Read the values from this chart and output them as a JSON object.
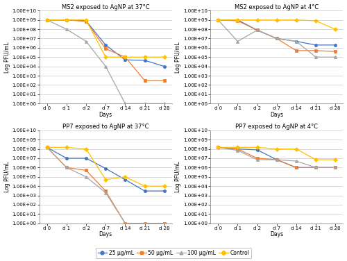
{
  "titles": [
    "MS2 exposed to AgNP at 37°C",
    "MS2 exposed to AgNP at 4°C",
    "PP7 exposed to AgNP at 37°C",
    "PP7 exposed to AgNP at 4°C"
  ],
  "x_labels": [
    "d 0",
    "d 1",
    "d 2",
    "d 7",
    "d 14",
    "d 21",
    "d 28"
  ],
  "x_vals": [
    0,
    1,
    2,
    3,
    4,
    5,
    6
  ],
  "ylabel": "Log PFU/mL",
  "xlabel": "Days",
  "colors": {
    "25": "#4472c4",
    "50": "#ed7d31",
    "100": "#a5a5a5",
    "control": "#ffc000"
  },
  "markers": {
    "25": "o",
    "50": "s",
    "100": "^",
    "control": "D"
  },
  "data": {
    "MS2_37": {
      "25": [
        1000000000.0,
        1000000000.0,
        800000000.0,
        2000000.0,
        50000.0,
        45000.0,
        10000.0
      ],
      "25_err": [
        0,
        0,
        50000000.0,
        300000.0,
        10000.0,
        5000.0,
        2000.0
      ],
      "50": [
        1000000000.0,
        1000000000.0,
        700000000.0,
        800000.0,
        100000.0,
        300.0,
        300.0
      ],
      "50_err": [
        0,
        0,
        50000000.0,
        100000.0,
        20000.0,
        100.0,
        100.0
      ],
      "100": [
        1000000000.0,
        100000000.0,
        5000000.0,
        10000.0,
        1.0,
        1.0,
        1.0
      ],
      "100_err": [
        0,
        20000000.0,
        500000.0,
        2000.0,
        0,
        0,
        0
      ],
      "control": [
        1000000000.0,
        1000000000.0,
        1000000000.0,
        100000.0,
        100000.0,
        100000.0,
        100000.0
      ],
      "control_err": [
        0,
        0,
        0,
        0,
        0,
        0,
        0
      ]
    },
    "MS2_4": {
      "25": [
        1000000000.0,
        1000000000.0,
        80000000.0,
        10000000.0,
        5000000.0,
        2000000.0,
        2000000.0
      ],
      "25_err": [
        0,
        0,
        10000000.0,
        2000000.0,
        500000.0,
        300000.0,
        300000.0
      ],
      "50": [
        1000000000.0,
        800000000.0,
        80000000.0,
        10000000.0,
        500000.0,
        500000.0,
        400000.0
      ],
      "50_err": [
        0,
        50000000.0,
        10000000.0,
        2000000.0,
        100000.0,
        100000.0,
        100000.0
      ],
      "100": [
        1000000000.0,
        5000000.0,
        80000000.0,
        10000000.0,
        5000000.0,
        100000.0,
        100000.0
      ],
      "100_err": [
        0,
        1000000.0,
        10000000.0,
        2000000.0,
        500000.0,
        20000.0,
        20000.0
      ],
      "control": [
        1000000000.0,
        1000000000.0,
        1000000000.0,
        1000000000.0,
        1000000000.0,
        800000000.0,
        100000000.0
      ],
      "control_err": [
        0,
        0,
        0,
        0,
        100000000.0,
        100000000.0,
        20000000.0
      ]
    },
    "PP7_37": {
      "25": [
        150000000.0,
        10000000.0,
        10000000.0,
        800000.0,
        50000.0,
        3000.0,
        3000.0
      ],
      "25_err": [
        0,
        2000000.0,
        2000000.0,
        100000.0,
        10000.0,
        500.0,
        500.0
      ],
      "50": [
        150000000.0,
        1000000.0,
        500000.0,
        3000.0,
        1.0,
        1.0,
        1.0
      ],
      "50_err": [
        0,
        200000.0,
        100000.0,
        500.0,
        0,
        0,
        0
      ],
      "100": [
        150000000.0,
        1000000.0,
        100000.0,
        2000.0,
        1.0,
        1.0,
        1.0
      ],
      "100_err": [
        0,
        200000.0,
        20000.0,
        500.0,
        0,
        0,
        0
      ],
      "control": [
        150000000.0,
        150000000.0,
        100000000.0,
        50000.0,
        100000.0,
        10000.0,
        10000.0
      ],
      "control_err": [
        0,
        10000000.0,
        5000000.0,
        10000.0,
        20000.0,
        2000.0,
        2000.0
      ]
    },
    "PP7_4": {
      "25": [
        150000000.0,
        100000000.0,
        80000000.0,
        7000000.0,
        1000000.0,
        1000000.0,
        1000000.0
      ],
      "25_err": [
        0,
        10000000.0,
        10000000.0,
        1000000.0,
        200000.0,
        200000.0,
        200000.0
      ],
      "50": [
        150000000.0,
        100000000.0,
        10000000.0,
        7000000.0,
        1000000.0,
        1000000.0,
        1000000.0
      ],
      "50_err": [
        0,
        10000000.0,
        2000000.0,
        1000000.0,
        200000.0,
        200000.0,
        200000.0
      ],
      "100": [
        150000000.0,
        70000000.0,
        7000000.0,
        7000000.0,
        5000000.0,
        1000000.0,
        1000000.0
      ],
      "100_err": [
        0,
        10000000.0,
        1000000.0,
        1000000.0,
        500000.0,
        200000.0,
        200000.0
      ],
      "control": [
        150000000.0,
        150000000.0,
        150000000.0,
        100000000.0,
        100000000.0,
        7000000.0,
        7000000.0
      ],
      "control_err": [
        0,
        10000000.0,
        10000000.0,
        10000000.0,
        10000000.0,
        1000000.0,
        1000000.0
      ]
    }
  },
  "ytick_labels": [
    "1.00E+00",
    "1.00E+01",
    "1.00E+02",
    "1.00E+03",
    "1.00E+04",
    "1.00E+05",
    "1.00E+06",
    "1.00E+07",
    "1.00E+08",
    "1.00E+09",
    "1.00E+10"
  ],
  "ytick_vals": [
    1.0,
    10.0,
    100.0,
    1000.0,
    10000.0,
    100000.0,
    1000000.0,
    10000000.0,
    100000000.0,
    1000000000.0,
    10000000000.0
  ],
  "legend_labels": [
    "25 μg/mL",
    "50 μg/mL",
    "100 μg/mL",
    "Control"
  ],
  "background_color": "#ffffff",
  "grid_color": "#c8c8c8",
  "title_fontsize": 6.0,
  "axis_label_fontsize": 5.5,
  "tick_fontsize": 5.0,
  "legend_fontsize": 5.5,
  "markersize": 3.0,
  "linewidth": 0.9,
  "capsize": 1.5,
  "elinewidth": 0.7
}
